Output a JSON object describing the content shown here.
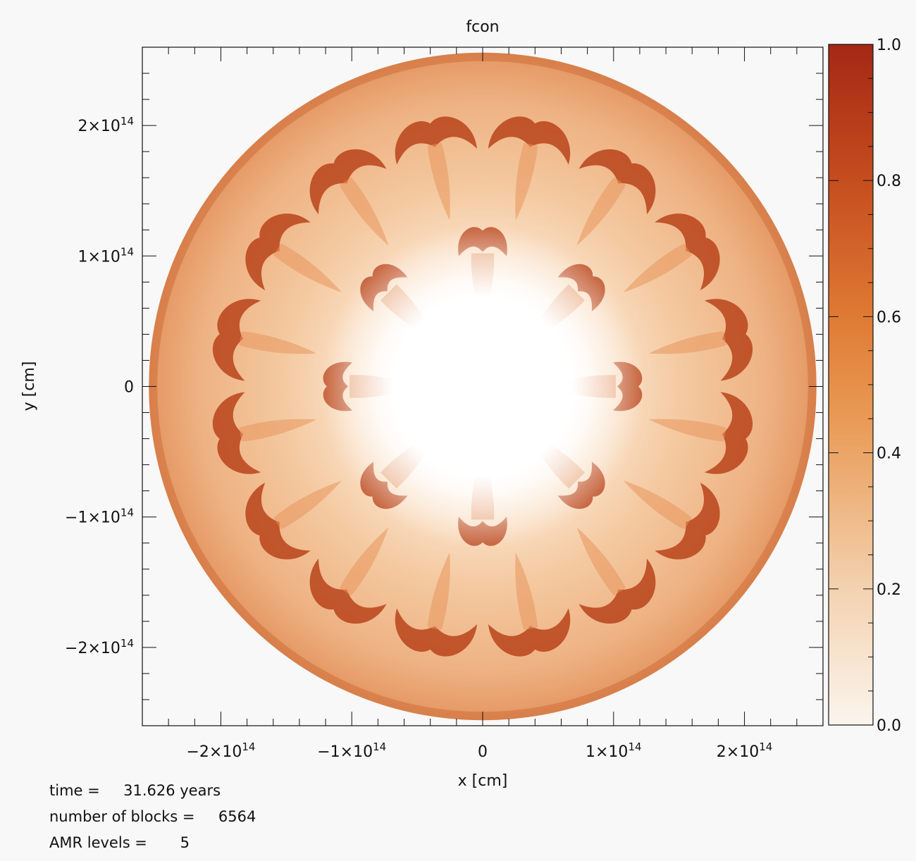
{
  "chart_data": {
    "type": "heatmap",
    "title": "fcon",
    "xlabel": "x [cm]",
    "ylabel": "y [cm]",
    "xlim": [
      -260000000000000.0,
      260000000000000.0
    ],
    "ylim": [
      -260000000000000.0,
      260000000000000.0
    ],
    "x_ticks": [
      {
        "value": -200000000000000.0,
        "base": "−2×10",
        "exp": "14"
      },
      {
        "value": -100000000000000.0,
        "base": "−1×10",
        "exp": "14"
      },
      {
        "value": 0,
        "base": "0",
        "exp": ""
      },
      {
        "value": 100000000000000.0,
        "base": "1×10",
        "exp": "14"
      },
      {
        "value": 200000000000000.0,
        "base": "2×10",
        "exp": "14"
      }
    ],
    "y_ticks": [
      {
        "value": 200000000000000.0,
        "base": "2×10",
        "exp": "14"
      },
      {
        "value": 100000000000000.0,
        "base": "1×10",
        "exp": "14"
      },
      {
        "value": 0,
        "base": "0",
        "exp": ""
      },
      {
        "value": -100000000000000.0,
        "base": "−1×10",
        "exp": "14"
      },
      {
        "value": -200000000000000.0,
        "base": "−2×10",
        "exp": "14"
      }
    ],
    "colorbar": {
      "range": [
        0.0,
        1.0
      ],
      "ticks": [
        "0.0",
        "0.2",
        "0.4",
        "0.6",
        "0.8",
        "1.0"
      ],
      "colors": [
        "#fbf5ee",
        "#f3d2b0",
        "#e99a55",
        "#df7a34",
        "#c54d1f",
        "#a42814"
      ]
    },
    "field": {
      "domain_radius": 255000000000000.0,
      "core_radius": 65000000000000.0,
      "symmetry": 8,
      "core_color": "#ffffff",
      "base_color": "#f2c9a2",
      "feature_color": "#b9431a"
    }
  },
  "info": {
    "time_line": "time =     31.626 years",
    "blocks_line": "number of blocks =     6564",
    "amr_line": "AMR levels =       5"
  }
}
